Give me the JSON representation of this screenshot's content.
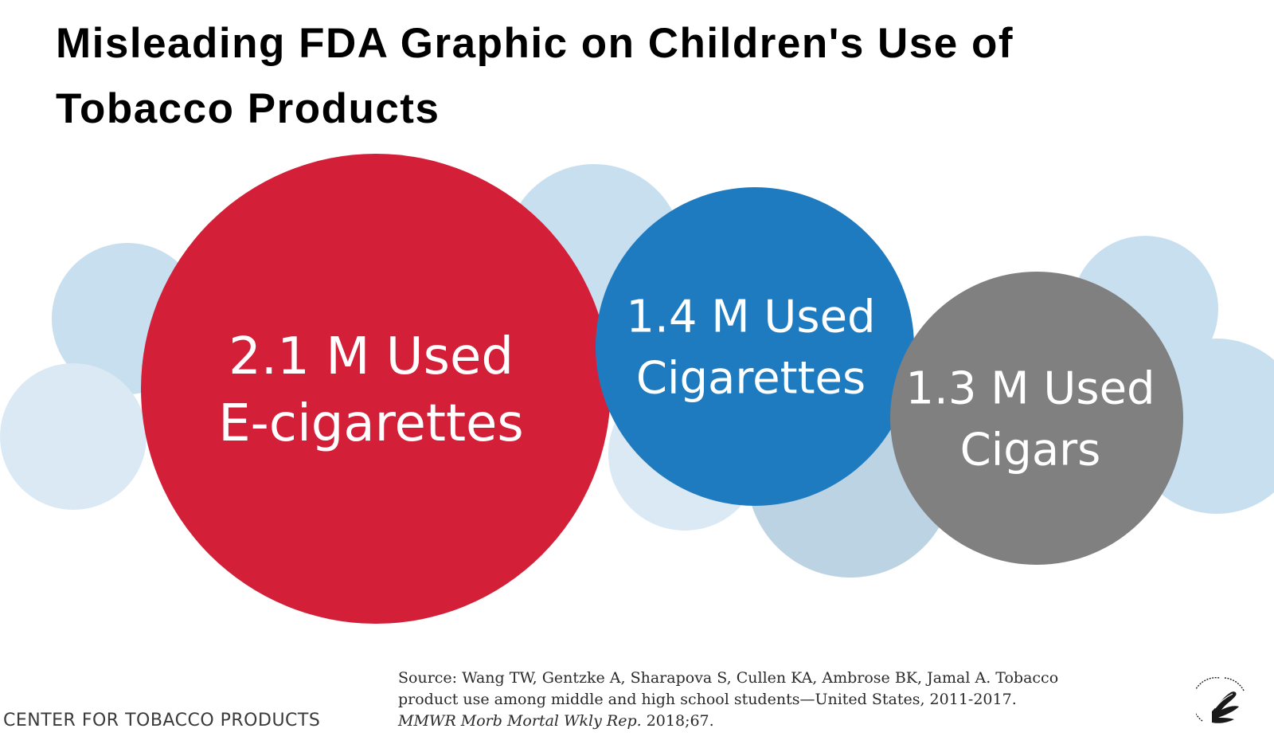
{
  "title_lines": [
    "Misleading FDA Graphic on Children's Use of",
    "Tobacco Products"
  ],
  "chart_data": {
    "type": "bubble",
    "title": "Misleading FDA Graphic on Children's Use of Tobacco Products",
    "unit": "M",
    "series": [
      {
        "name": "E-cigarettes",
        "value": 2.1,
        "label_lines": [
          "2.1 M Used",
          "E-cigarettes"
        ],
        "color": "#d41f38"
      },
      {
        "name": "Cigarettes",
        "value": 1.4,
        "label_lines": [
          "1.4 M Used",
          "Cigarettes"
        ],
        "color": "#1f7bbf"
      },
      {
        "name": "Cigars",
        "value": 1.3,
        "label_lines": [
          "1.3 M Used",
          "Cigars"
        ],
        "color": "#808080"
      }
    ],
    "decorative_bubble_colors": [
      "#c8dff0",
      "#bcd3e3",
      "#dae9f4"
    ]
  },
  "footer": {
    "org": "CENTER FOR TOBACCO PRODUCTS",
    "source_lines": [
      "Source: Wang TW, Gentzke A, Sharapova S, Cullen KA, Ambrose BK, Jamal A. Tobacco",
      "product use among middle and high school students—United States, 2011-2017."
    ],
    "source_journal": "MMWR Morb Mortal Wkly Rep.",
    "source_year": " 2018;67."
  },
  "icons": {
    "seal": "hhs-eagle-seal-icon"
  }
}
